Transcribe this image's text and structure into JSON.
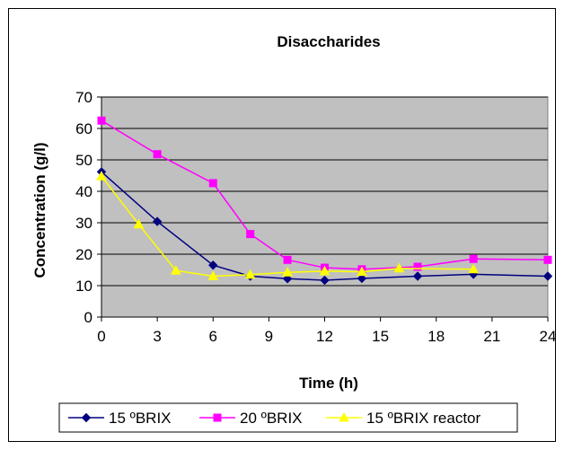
{
  "chart_data": {
    "type": "line",
    "title": "Disaccharides",
    "xlabel": "Time (h)",
    "ylabel": "Concentration (g/l)",
    "xlim": [
      0,
      24
    ],
    "ylim": [
      0,
      70
    ],
    "xticks": [
      0,
      3,
      6,
      9,
      12,
      15,
      18,
      21,
      24
    ],
    "yticks": [
      0,
      10,
      20,
      30,
      40,
      50,
      60,
      70
    ],
    "grid": "horizontal",
    "plot_background": "#c0c0c0",
    "legend_position": "bottom",
    "series": [
      {
        "name": "15 ºBRIX",
        "color": "#000080",
        "marker": "diamond",
        "x": [
          0,
          3,
          6,
          8,
          10,
          12,
          14,
          17,
          20,
          24
        ],
        "y": [
          46.2,
          30.4,
          16.5,
          13.0,
          12.2,
          11.7,
          12.3,
          13.0,
          13.6,
          13.0
        ]
      },
      {
        "name": "20 ºBRIX",
        "color": "#ff00ff",
        "marker": "square",
        "x": [
          0,
          3,
          6,
          8,
          10,
          12,
          14,
          17,
          20,
          24
        ],
        "y": [
          62.5,
          51.8,
          42.6,
          26.4,
          18.2,
          15.7,
          15.2,
          16.0,
          18.5,
          18.2
        ]
      },
      {
        "name": "15 ºBRIX reactor",
        "color": "#ffff00",
        "marker": "triangle",
        "x": [
          0,
          2,
          4,
          6,
          8,
          10,
          12,
          14,
          16,
          20
        ],
        "y": [
          44.8,
          29.5,
          14.8,
          13.0,
          13.5,
          14.2,
          14.6,
          14.4,
          15.5,
          15.2
        ]
      }
    ]
  }
}
